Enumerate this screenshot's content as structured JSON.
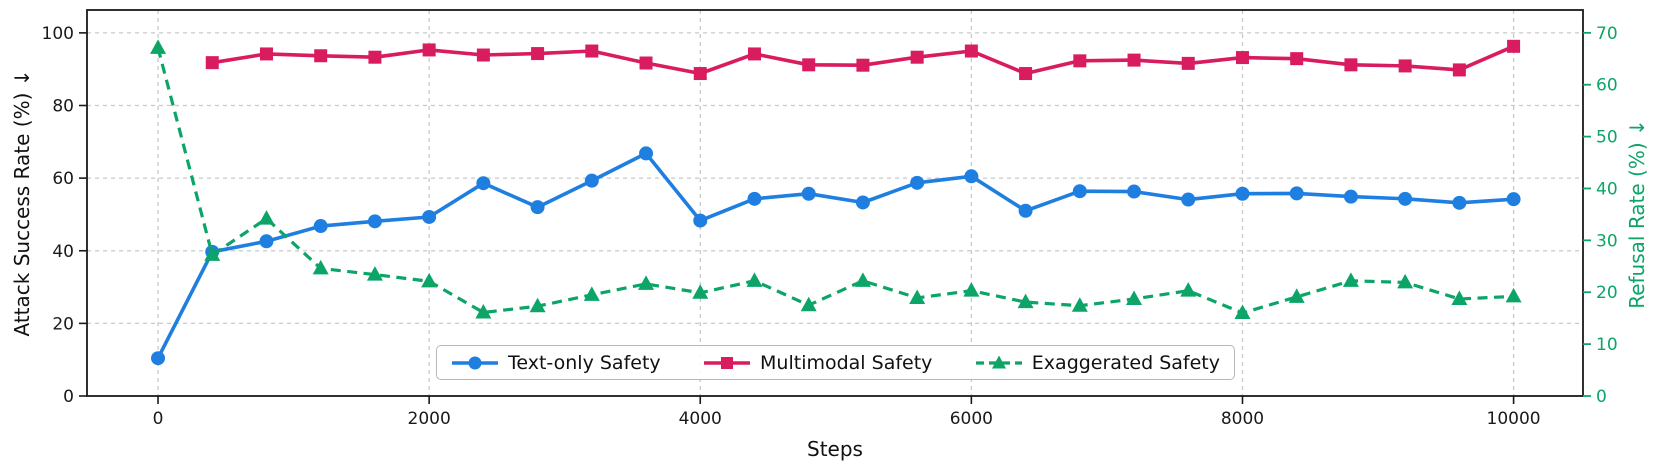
{
  "chart_data": {
    "type": "line",
    "title": "",
    "xlabel": "Steps",
    "ylabel_left": "Attack Success Rate (%) ↓",
    "ylabel_right": "Refusal Rate (%) ↓",
    "grid": true,
    "grid_style": "dashed",
    "legend_position": "lower center",
    "xticks": [
      0,
      2000,
      4000,
      6000,
      8000,
      10000
    ],
    "yticks_left": [
      0,
      20,
      40,
      60,
      80,
      100
    ],
    "yticks_right": [
      0,
      10,
      20,
      30,
      40,
      50,
      60,
      70
    ],
    "xlim": [
      -524,
      10512
    ],
    "ylim_left": [
      0,
      106.3
    ],
    "ylim_right": [
      0,
      74.4
    ],
    "axis_colors": {
      "left": "#1a1a1a",
      "right": "#0ca467",
      "bottom": "#1a1a1a"
    },
    "x": [
      0,
      400,
      800,
      1200,
      1600,
      2000,
      2400,
      2800,
      3200,
      3600,
      4000,
      4400,
      4800,
      5200,
      5600,
      6000,
      6400,
      6800,
      7200,
      7600,
      8000,
      8400,
      8800,
      9200,
      9600,
      10000
    ],
    "series": [
      {
        "name": "Text-only Safety",
        "axis": "left",
        "color": "#1f7fe1",
        "marker": "circle",
        "line": "solid",
        "values": [
          10.4,
          39.7,
          42.6,
          46.8,
          48.1,
          49.3,
          58.6,
          52.0,
          59.3,
          66.8,
          48.3,
          54.3,
          55.7,
          53.3,
          58.7,
          60.5,
          51.0,
          56.4,
          56.3,
          54.1,
          55.7,
          55.8,
          54.9,
          54.3,
          53.2,
          54.2
        ]
      },
      {
        "name": "Multimodal Safety",
        "axis": "left",
        "color": "#d81c5f",
        "marker": "square",
        "line": "solid",
        "values": [
          null,
          91.8,
          94.2,
          93.7,
          93.3,
          95.3,
          93.9,
          94.3,
          95.0,
          91.7,
          88.8,
          94.2,
          91.2,
          91.1,
          93.3,
          95.0,
          88.8,
          92.3,
          92.5,
          91.6,
          93.2,
          92.9,
          91.2,
          90.9,
          89.8,
          96.3
        ]
      },
      {
        "name": "Exaggerated Safety",
        "axis": "right",
        "color": "#0ca467",
        "marker": "triangle",
        "line": "dashed",
        "values": [
          67.1,
          27.2,
          34.2,
          24.6,
          23.4,
          22.1,
          16.1,
          17.3,
          19.5,
          21.6,
          19.9,
          22.2,
          17.5,
          22.2,
          18.9,
          20.3,
          18.1,
          17.4,
          18.7,
          20.3,
          16.0,
          19.1,
          22.2,
          21.9,
          18.7,
          19.2
        ]
      }
    ]
  }
}
